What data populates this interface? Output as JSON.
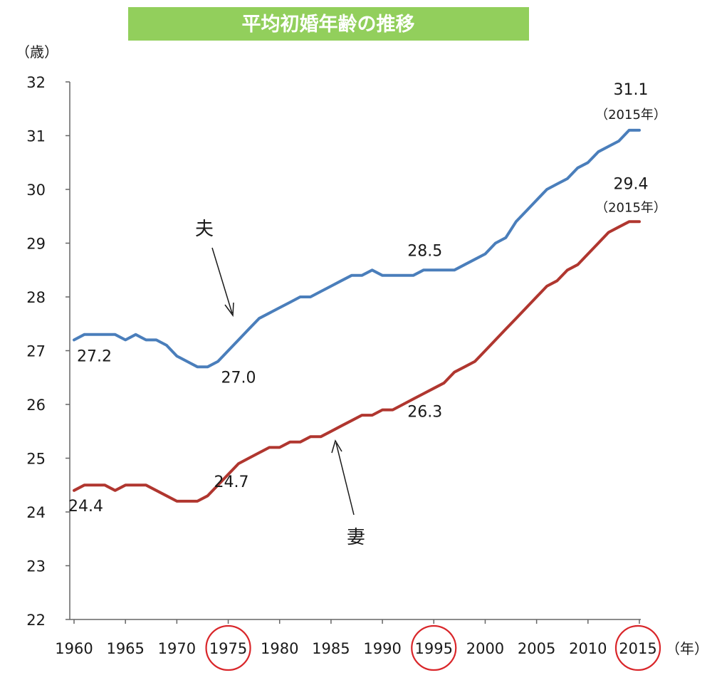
{
  "chart_data": {
    "type": "line",
    "title": "平均初婚年齢の推移",
    "y_unit": "（歳）",
    "x_unit": "（年）",
    "ylim": [
      22,
      32
    ],
    "xlim": [
      1960,
      2015
    ],
    "y_ticks": [
      "22",
      "23",
      "24",
      "25",
      "26",
      "27",
      "28",
      "29",
      "30",
      "31",
      "32"
    ],
    "x_ticks": [
      "1960",
      "1965",
      "1970",
      "1975",
      "1980",
      "1985",
      "1990",
      "1995",
      "2000",
      "2005",
      "2010",
      "2015"
    ],
    "circled_years": [
      "1975",
      "1995",
      "2015"
    ],
    "legend": "inline labels with arrows",
    "grid": false,
    "series": [
      {
        "name": "夫",
        "color": "#4a7ebb",
        "x": [
          1960,
          1961,
          1962,
          1963,
          1964,
          1965,
          1966,
          1967,
          1968,
          1969,
          1970,
          1971,
          1972,
          1973,
          1974,
          1975,
          1976,
          1977,
          1978,
          1979,
          1980,
          1981,
          1982,
          1983,
          1984,
          1985,
          1986,
          1987,
          1988,
          1989,
          1990,
          1991,
          1992,
          1993,
          1994,
          1995,
          1996,
          1997,
          1998,
          1999,
          2000,
          2001,
          2002,
          2003,
          2004,
          2005,
          2006,
          2007,
          2008,
          2009,
          2010,
          2011,
          2012,
          2013,
          2014,
          2015
        ],
        "values": [
          27.2,
          27.3,
          27.3,
          27.3,
          27.3,
          27.2,
          27.3,
          27.2,
          27.2,
          27.1,
          26.9,
          26.8,
          26.7,
          26.7,
          26.8,
          27.0,
          27.2,
          27.4,
          27.6,
          27.7,
          27.8,
          27.9,
          28.0,
          28.0,
          28.1,
          28.2,
          28.3,
          28.4,
          28.4,
          28.5,
          28.4,
          28.4,
          28.4,
          28.4,
          28.5,
          28.5,
          28.5,
          28.5,
          28.6,
          28.7,
          28.8,
          29.0,
          29.1,
          29.4,
          29.6,
          29.8,
          30.0,
          30.1,
          30.2,
          30.4,
          30.5,
          30.7,
          30.8,
          30.9,
          31.1,
          31.1
        ]
      },
      {
        "name": "妻",
        "color": "#b0362f",
        "x": [
          1960,
          1961,
          1962,
          1963,
          1964,
          1965,
          1966,
          1967,
          1968,
          1969,
          1970,
          1971,
          1972,
          1973,
          1974,
          1975,
          1976,
          1977,
          1978,
          1979,
          1980,
          1981,
          1982,
          1983,
          1984,
          1985,
          1986,
          1987,
          1988,
          1989,
          1990,
          1991,
          1992,
          1993,
          1994,
          1995,
          1996,
          1997,
          1998,
          1999,
          2000,
          2001,
          2002,
          2003,
          2004,
          2005,
          2006,
          2007,
          2008,
          2009,
          2010,
          2011,
          2012,
          2013,
          2014,
          2015
        ],
        "values": [
          24.4,
          24.5,
          24.5,
          24.5,
          24.4,
          24.5,
          24.5,
          24.5,
          24.4,
          24.3,
          24.2,
          24.2,
          24.2,
          24.3,
          24.5,
          24.7,
          24.9,
          25.0,
          25.1,
          25.2,
          25.2,
          25.3,
          25.3,
          25.4,
          25.4,
          25.5,
          25.6,
          25.7,
          25.8,
          25.8,
          25.9,
          25.9,
          26.0,
          26.1,
          26.2,
          26.3,
          26.4,
          26.6,
          26.7,
          26.8,
          27.0,
          27.2,
          27.4,
          27.6,
          27.8,
          28.0,
          28.2,
          28.3,
          28.5,
          28.6,
          28.8,
          29.0,
          29.2,
          29.3,
          29.4,
          29.4
        ]
      }
    ],
    "annotations": [
      {
        "text": "27.2",
        "x": 1960,
        "y": 27.2
      },
      {
        "text": "27.0",
        "x": 1975,
        "y": 27.0
      },
      {
        "text": "28.5",
        "x": 1995,
        "y": 28.5
      },
      {
        "text": "31.1",
        "x": 2015,
        "y": 31.1
      },
      {
        "text": "（2015年）",
        "x": 2015,
        "y": 31.1
      },
      {
        "text": "24.4",
        "x": 1960,
        "y": 24.4
      },
      {
        "text": "24.7",
        "x": 1975,
        "y": 24.7
      },
      {
        "text": "26.3",
        "x": 1995,
        "y": 26.3
      },
      {
        "text": "29.4",
        "x": 2015,
        "y": 29.4
      },
      {
        "text": "（2015年）",
        "x": 2015,
        "y": 29.4
      }
    ]
  }
}
